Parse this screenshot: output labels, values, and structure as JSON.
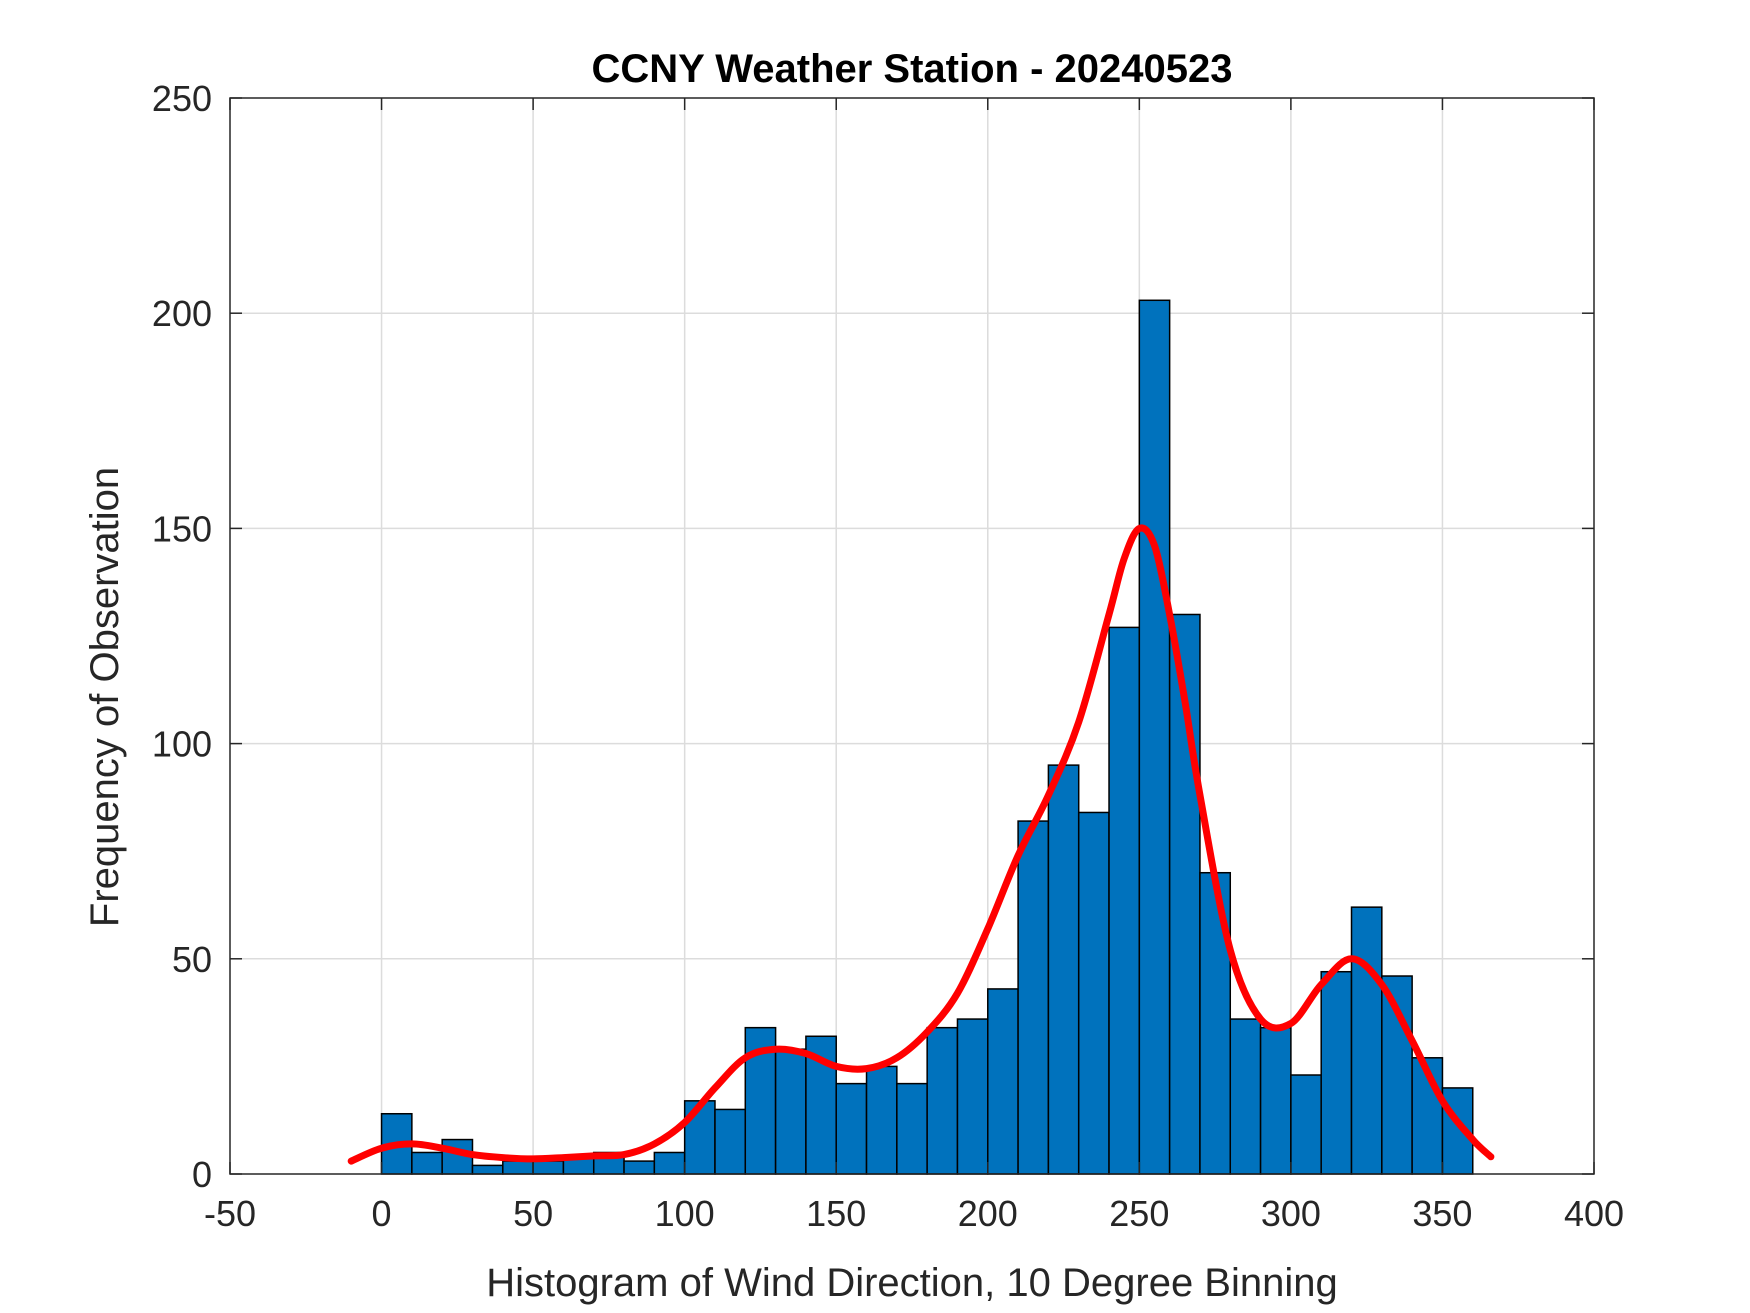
{
  "chart_data": {
    "type": "bar",
    "title": "CCNY Weather Station - 20240523",
    "xlabel": "Histogram of Wind Direction, 10 Degree Binning",
    "ylabel": "Frequency of Observation",
    "xlim": [
      -50,
      400
    ],
    "ylim": [
      0,
      250
    ],
    "xticks": [
      -50,
      0,
      50,
      100,
      150,
      200,
      250,
      300,
      350,
      400
    ],
    "yticks": [
      0,
      50,
      100,
      150,
      200,
      250
    ],
    "grid": true,
    "bin_width": 10,
    "bins": [
      {
        "start": 0,
        "count": 14
      },
      {
        "start": 10,
        "count": 5
      },
      {
        "start": 20,
        "count": 8
      },
      {
        "start": 30,
        "count": 2
      },
      {
        "start": 40,
        "count": 3
      },
      {
        "start": 50,
        "count": 3
      },
      {
        "start": 60,
        "count": 4
      },
      {
        "start": 70,
        "count": 5
      },
      {
        "start": 80,
        "count": 3
      },
      {
        "start": 90,
        "count": 5
      },
      {
        "start": 100,
        "count": 17
      },
      {
        "start": 110,
        "count": 15
      },
      {
        "start": 120,
        "count": 34
      },
      {
        "start": 130,
        "count": 29
      },
      {
        "start": 140,
        "count": 32
      },
      {
        "start": 150,
        "count": 21
      },
      {
        "start": 160,
        "count": 25
      },
      {
        "start": 170,
        "count": 21
      },
      {
        "start": 180,
        "count": 34
      },
      {
        "start": 190,
        "count": 36
      },
      {
        "start": 200,
        "count": 43
      },
      {
        "start": 210,
        "count": 82
      },
      {
        "start": 220,
        "count": 95
      },
      {
        "start": 230,
        "count": 84
      },
      {
        "start": 240,
        "count": 127
      },
      {
        "start": 250,
        "count": 203
      },
      {
        "start": 260,
        "count": 130
      },
      {
        "start": 270,
        "count": 70
      },
      {
        "start": 280,
        "count": 36
      },
      {
        "start": 290,
        "count": 34
      },
      {
        "start": 300,
        "count": 23
      },
      {
        "start": 310,
        "count": 47
      },
      {
        "start": 320,
        "count": 62
      },
      {
        "start": 330,
        "count": 46
      },
      {
        "start": 340,
        "count": 27
      },
      {
        "start": 350,
        "count": 20
      }
    ],
    "fit_curve": {
      "x": [
        -10,
        0,
        10,
        20,
        30,
        40,
        50,
        60,
        70,
        80,
        90,
        100,
        110,
        120,
        130,
        140,
        150,
        160,
        170,
        180,
        190,
        200,
        210,
        220,
        230,
        240,
        245,
        250,
        255,
        260,
        265,
        270,
        280,
        290,
        300,
        310,
        320,
        330,
        340,
        350,
        360,
        366
      ],
      "y": [
        3,
        6,
        7,
        6,
        4.5,
        3.8,
        3.5,
        3.8,
        4.2,
        4.5,
        7,
        12,
        20,
        27,
        29,
        28,
        25,
        24.5,
        27,
        33,
        42,
        57,
        74,
        88,
        105,
        130,
        143,
        150,
        146,
        130,
        110,
        88,
        52,
        36,
        35,
        44,
        50,
        44,
        31,
        17,
        8,
        4
      ]
    },
    "colors": {
      "bar_fill": "#0072BD",
      "bar_edge": "#000000",
      "curve": "#FF0000",
      "grid": "#DCDCDC",
      "axis": "#262626"
    }
  }
}
